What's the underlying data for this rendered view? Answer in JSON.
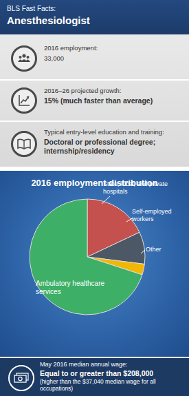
{
  "header": {
    "subtitle": "BLS Fast Facts:",
    "title": "Anesthesiologist"
  },
  "facts": [
    {
      "label": "2016 employment:",
      "value": "33,000"
    },
    {
      "label": "2016–26 projected growth:",
      "value": "15% (much faster than average)"
    },
    {
      "label": "Typical entry-level education and training:",
      "value": "Doctoral or professional degree; internship/residency"
    }
  ],
  "chart_data": {
    "type": "pie",
    "title": "2016 employment distribution",
    "categories": [
      "State, local, and private hospitals",
      "Self-employed workers",
      "Other",
      "Ambulatory healthcare services"
    ],
    "values": [
      18,
      9,
      3,
      70
    ],
    "colors": [
      "#c5514f",
      "#4d5866",
      "#f2b705",
      "#3daf66"
    ]
  },
  "wage": {
    "label": "May 2016 median annual wage:",
    "value": "Equal to or greater than $208,000",
    "note": "(higher than the $37,040 median wage for all occupations)"
  }
}
